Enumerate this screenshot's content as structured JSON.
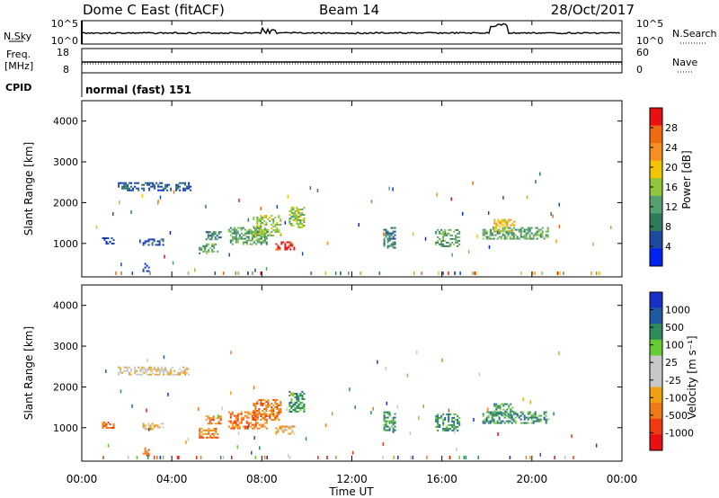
{
  "header": {
    "station": "Dome C East (fitACF)",
    "beam": "Beam 14",
    "date": "28/Oct/2017"
  },
  "status_panels": {
    "nsky_label": "N.Sky",
    "nsky_ticks": [
      "10^5",
      "10^0"
    ],
    "nsearch_label": "N.Search",
    "nsearch_ticks": [
      "10^5",
      "10^0"
    ],
    "freq_label": "Freq.",
    "freq_unit": "[MHz]",
    "freq_ticks": [
      "18",
      "8"
    ],
    "nave_label": "Nave",
    "nave_ticks": [
      "60",
      "0"
    ],
    "cpid_label": "CPID",
    "cpid_text": "normal (fast) 151"
  },
  "colors": {
    "power": [
      "#0022ee",
      "#1e4aa0",
      "#2e7d5a",
      "#55a070",
      "#8fc63c",
      "#f5c400",
      "#f59020",
      "#f06a10",
      "#e81010"
    ],
    "velocity": [
      "#e81010",
      "#f03a10",
      "#f07a18",
      "#f0a010",
      "#c8c8c8",
      "#c8c8c8",
      "#66cc33",
      "#2e8b5a",
      "#1e5aa0",
      "#1a2ec8"
    ]
  },
  "chart_data": [
    {
      "type": "heatmap",
      "name": "power",
      "x_range_hours": [
        0,
        24
      ],
      "y_range_km": [
        180,
        4500
      ],
      "ylabel": "Slant Range [km]",
      "y_ticks": [
        "1000",
        "2000",
        "3000",
        "4000"
      ],
      "colorbar_label": "Power [dB]",
      "colorbar_ticks": [
        "4",
        "8",
        "12",
        "16",
        "20",
        "24",
        "28"
      ],
      "clusters": [
        {
          "t0": 0.9,
          "t1": 1.4,
          "r0": 980,
          "r1": 1150,
          "level": 1
        },
        {
          "t0": 2.7,
          "t1": 3.6,
          "r0": 980,
          "r1": 1120,
          "level": 1
        },
        {
          "t0": 2.7,
          "t1": 3.0,
          "r0": 300,
          "r1": 520,
          "level": 1
        },
        {
          "t0": 1.6,
          "t1": 4.8,
          "r0": 2300,
          "r1": 2500,
          "level": 1
        },
        {
          "t0": 5.2,
          "t1": 6.0,
          "r0": 750,
          "r1": 1000,
          "level": 3
        },
        {
          "t0": 5.5,
          "t1": 6.2,
          "r0": 1100,
          "r1": 1300,
          "level": 2
        },
        {
          "t0": 6.5,
          "t1": 8.2,
          "r0": 1000,
          "r1": 1400,
          "level": 3
        },
        {
          "t0": 7.6,
          "t1": 8.8,
          "r0": 1200,
          "r1": 1700,
          "level": 4
        },
        {
          "t0": 8.6,
          "t1": 9.4,
          "r0": 850,
          "r1": 1050,
          "level": 8
        },
        {
          "t0": 9.2,
          "t1": 9.9,
          "r0": 1400,
          "r1": 1900,
          "level": 4
        },
        {
          "t0": 13.4,
          "t1": 13.9,
          "r0": 900,
          "r1": 1400,
          "level": 2
        },
        {
          "t0": 15.7,
          "t1": 16.8,
          "r0": 950,
          "r1": 1350,
          "level": 3
        },
        {
          "t0": 17.8,
          "t1": 20.7,
          "r0": 1100,
          "r1": 1400,
          "level": 3
        },
        {
          "t0": 18.3,
          "t1": 19.2,
          "r0": 1300,
          "r1": 1600,
          "level": 5
        }
      ]
    },
    {
      "type": "heatmap",
      "name": "velocity",
      "x_range_hours": [
        0,
        24
      ],
      "y_range_km": [
        180,
        4500
      ],
      "xlabel": "Time UT",
      "ylabel": "Slant Range [km]",
      "x_ticks": [
        "00:00",
        "04:00",
        "08:00",
        "12:00",
        "16:00",
        "20:00",
        "00:00"
      ],
      "y_ticks": [
        "1000",
        "2000",
        "3000",
        "4000"
      ],
      "colorbar_label": "Velocity [m s⁻¹]",
      "colorbar_ticks": [
        "-1000",
        "-500",
        "-100",
        "-25",
        "25",
        "100",
        "500",
        "1000"
      ],
      "clusters": [
        {
          "t0": 0.9,
          "t1": 1.4,
          "r0": 980,
          "r1": 1150,
          "level": 2
        },
        {
          "t0": 2.7,
          "t1": 3.6,
          "r0": 980,
          "r1": 1120,
          "level": 3
        },
        {
          "t0": 2.7,
          "t1": 3.0,
          "r0": 300,
          "r1": 520,
          "level": 2
        },
        {
          "t0": 1.6,
          "t1": 4.8,
          "r0": 2300,
          "r1": 2500,
          "level": 4
        },
        {
          "t0": 5.2,
          "t1": 6.0,
          "r0": 750,
          "r1": 1000,
          "level": 2
        },
        {
          "t0": 5.5,
          "t1": 6.2,
          "r0": 1100,
          "r1": 1300,
          "level": 2
        },
        {
          "t0": 6.5,
          "t1": 8.2,
          "r0": 1000,
          "r1": 1400,
          "level": 2
        },
        {
          "t0": 7.6,
          "t1": 8.8,
          "r0": 1200,
          "r1": 1700,
          "level": 2
        },
        {
          "t0": 8.6,
          "t1": 9.4,
          "r0": 850,
          "r1": 1050,
          "level": 3
        },
        {
          "t0": 9.2,
          "t1": 9.9,
          "r0": 1400,
          "r1": 1900,
          "level": 7
        },
        {
          "t0": 13.4,
          "t1": 13.9,
          "r0": 900,
          "r1": 1400,
          "level": 7
        },
        {
          "t0": 15.7,
          "t1": 16.8,
          "r0": 950,
          "r1": 1350,
          "level": 7
        },
        {
          "t0": 17.8,
          "t1": 20.7,
          "r0": 1100,
          "r1": 1400,
          "level": 7
        },
        {
          "t0": 18.3,
          "t1": 19.2,
          "r0": 1300,
          "r1": 1600,
          "level": 7
        }
      ]
    }
  ]
}
